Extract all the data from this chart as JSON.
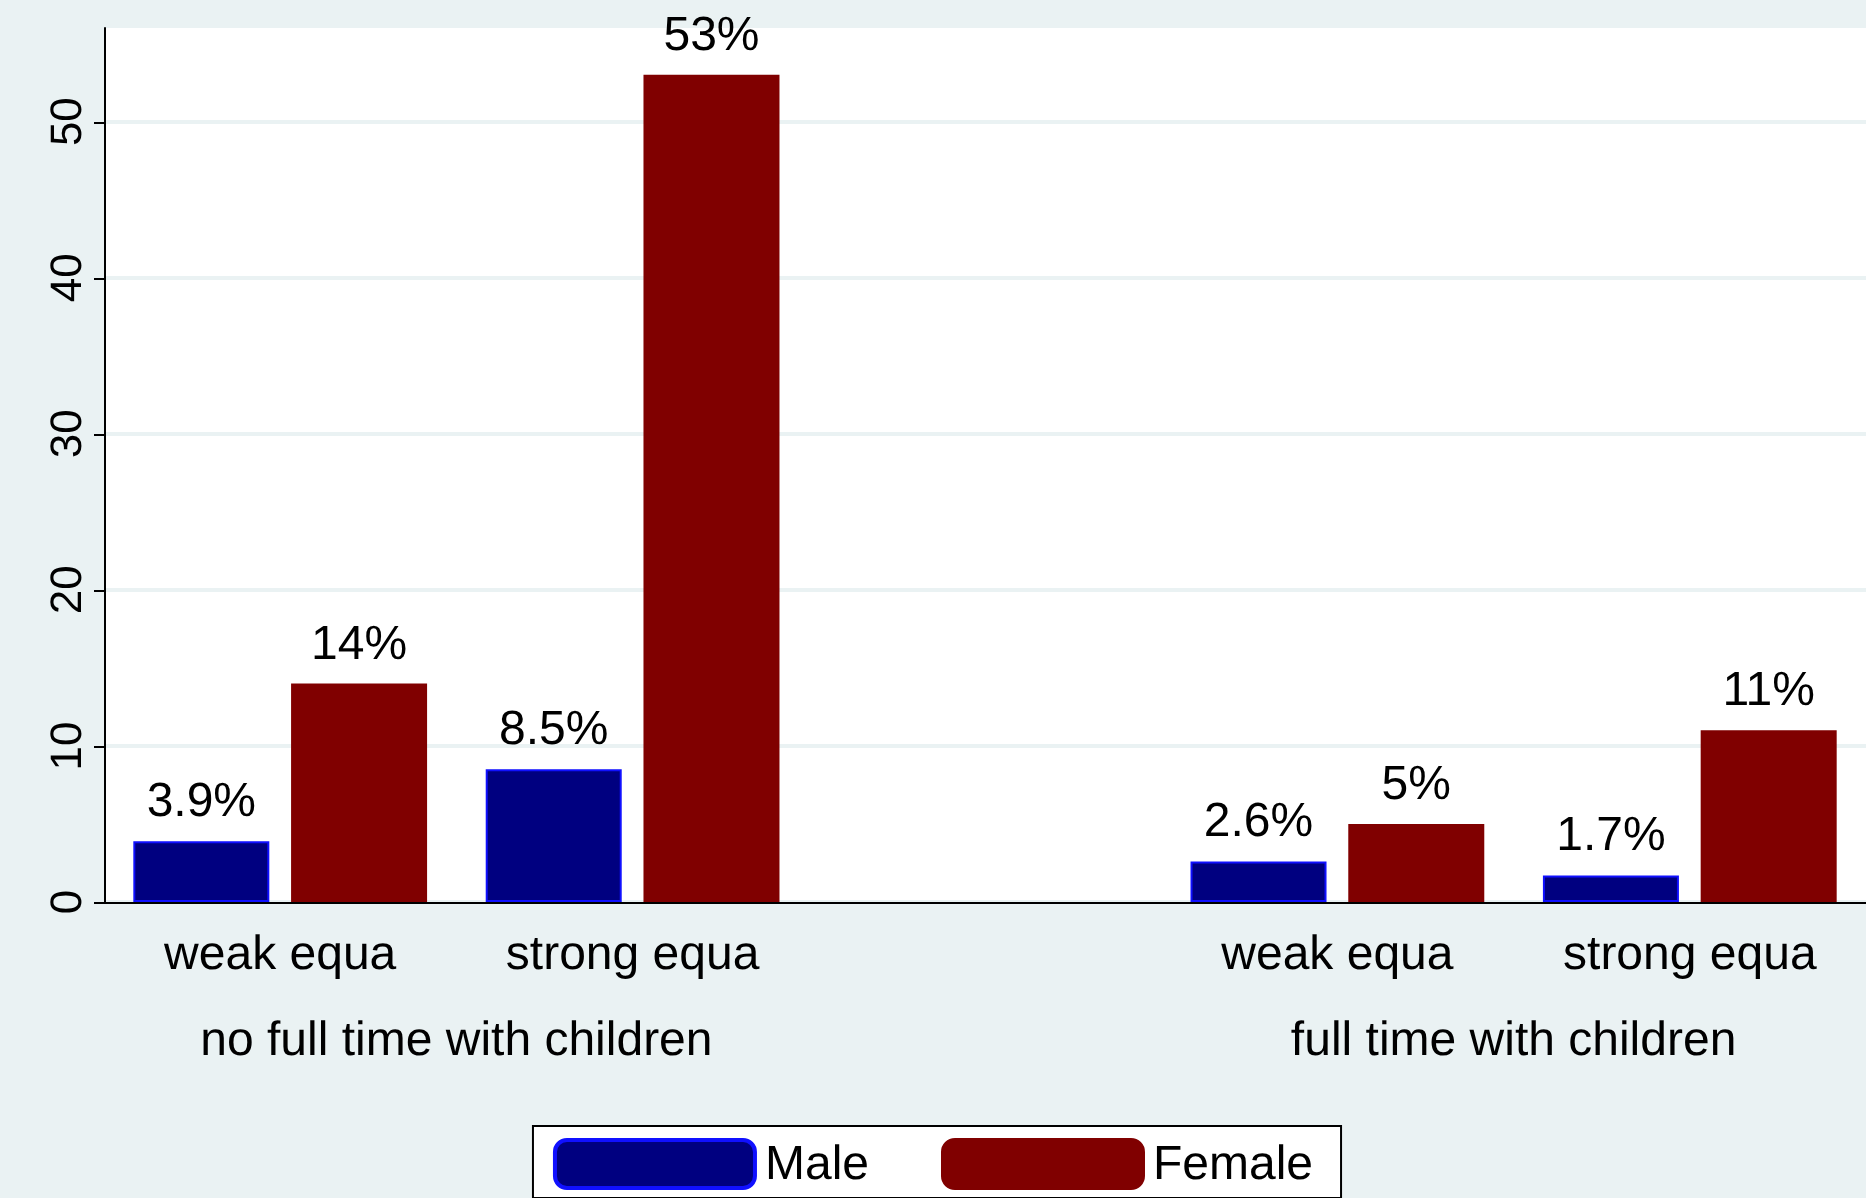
{
  "chart_data": {
    "type": "bar",
    "categories": [
      "weak equa",
      "strong equa",
      null,
      "weak equa",
      "strong equa"
    ],
    "series": [
      {
        "name": "Male",
        "color": "#000080",
        "values": [
          3.9,
          8.5,
          null,
          2.6,
          1.7
        ],
        "value_labels": [
          "3.9%",
          "8.5%",
          null,
          "2.6%",
          "1.7%"
        ]
      },
      {
        "name": "Female",
        "color": "#800000",
        "values": [
          14,
          53,
          null,
          5,
          11
        ],
        "value_labels": [
          "14%",
          "53%",
          null,
          "5%",
          "11%"
        ]
      }
    ],
    "annotations": [
      "no full time with children",
      "full time with children"
    ],
    "ylim": [
      0,
      56
    ],
    "yticks": [
      0,
      10,
      20,
      30,
      40,
      50
    ],
    "grid": "y",
    "legend": "bottom"
  }
}
